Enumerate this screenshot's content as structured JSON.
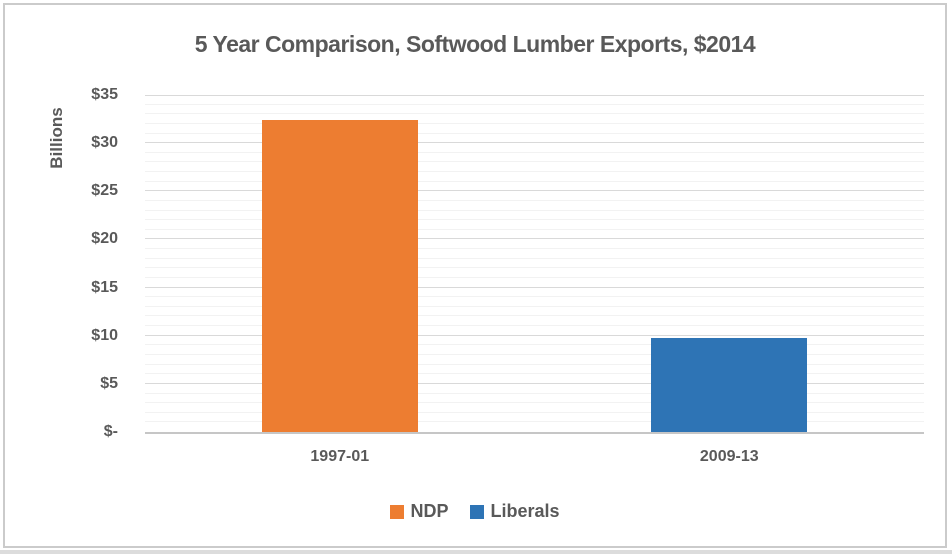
{
  "chart_data": {
    "type": "bar",
    "title": "5 Year Comparison, Softwood Lumber Exports, $2014",
    "ylabel": "Billions",
    "xlabel": "",
    "categories": [
      "1997-01",
      "2009-13"
    ],
    "series": [
      {
        "name": "NDP",
        "category": "1997-01",
        "value": 32.4,
        "color": "#ED7D31"
      },
      {
        "name": "Liberals",
        "category": "2009-13",
        "value": 9.8,
        "color": "#2E74B5"
      }
    ],
    "y_axis": {
      "min": 0,
      "max": 35,
      "major_step": 5,
      "minor_step": 1,
      "ticks": [
        {
          "value": 0,
          "label": "$-"
        },
        {
          "value": 5,
          "label": "$5"
        },
        {
          "value": 10,
          "label": "$10"
        },
        {
          "value": 15,
          "label": "$15"
        },
        {
          "value": 20,
          "label": "$20"
        },
        {
          "value": 25,
          "label": "$25"
        },
        {
          "value": 30,
          "label": "$30"
        },
        {
          "value": 35,
          "label": "$35"
        }
      ]
    },
    "legend": {
      "position": "bottom",
      "entries": [
        "NDP",
        "Liberals"
      ]
    },
    "grid": {
      "major_color": "#D9D9D9",
      "minor_color": "#F2F2F2",
      "axis_line_color": "#C6C6C6"
    },
    "colors": {
      "text": "#595959",
      "frame_border": "#CBCBCB"
    }
  }
}
